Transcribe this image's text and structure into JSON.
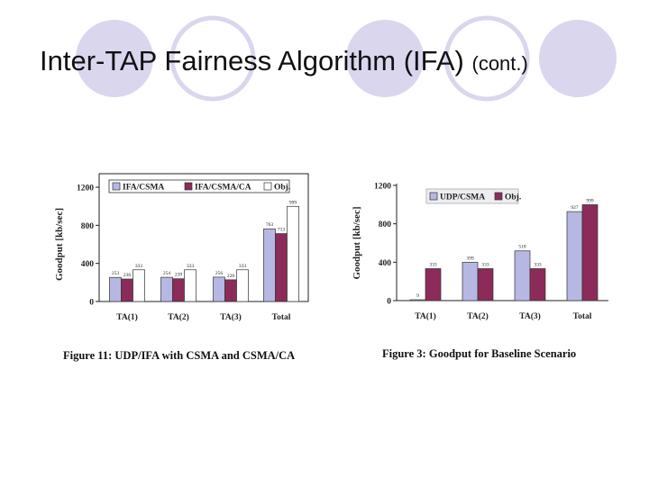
{
  "slide": {
    "title_main": "Inter-TAP Fairness Algorithm (IFA)",
    "title_suffix": "(cont.)",
    "colors": {
      "circle": "#d9d6ee",
      "csma": "#b7b7e3",
      "csmaca": "#8c2b5a",
      "obj": "#ffffff"
    }
  },
  "chart_data": [
    {
      "type": "bar",
      "caption": "Figure 11: UDP/IFA with CSMA and CSMA/CA",
      "ylabel": "Goodput [kb/sec]",
      "xlabel": "",
      "ylim": [
        0,
        1200
      ],
      "yticks": [
        0,
        400,
        800,
        1200
      ],
      "ytick_labels": [
        "0",
        "400",
        "800",
        "1200"
      ],
      "categories": [
        "TA(1)",
        "TA(2)",
        "TA(3)",
        "Total"
      ],
      "legend_position": "top",
      "series": [
        {
          "name": "IFA/CSMA",
          "values": [
            253,
            254,
            256,
            763
          ],
          "labels": [
            "253",
            "254",
            "256",
            "763"
          ]
        },
        {
          "name": "IFA/CSMA/CA",
          "values": [
            236,
            239,
            228,
            713
          ],
          "labels": [
            "236",
            "239",
            "228",
            "713"
          ]
        },
        {
          "name": "Obj.",
          "values": [
            333,
            333,
            333,
            999
          ],
          "labels": [
            "333",
            "333",
            "333",
            "999"
          ]
        }
      ]
    },
    {
      "type": "bar",
      "caption": "Figure 3: Goodput for Baseline Scenario",
      "ylabel": "Goodput [kb/sec]",
      "xlabel": "",
      "ylim": [
        0,
        1200
      ],
      "yticks": [
        0,
        400,
        800,
        1200
      ],
      "ytick_labels": [
        "0",
        "400",
        "800",
        "1200"
      ],
      "categories": [
        "TA(1)",
        "TA(2)",
        "TA(3)",
        "Total"
      ],
      "legend_position": "top",
      "series": [
        {
          "name": "UDP/CSMA",
          "values": [
            9,
            399,
            518,
            927
          ],
          "labels": [
            "9",
            "399",
            "518",
            "927"
          ]
        },
        {
          "name": "Obj.",
          "values": [
            333,
            333,
            333,
            999
          ],
          "labels": [
            "333",
            "333",
            "333",
            "999"
          ]
        }
      ]
    }
  ]
}
